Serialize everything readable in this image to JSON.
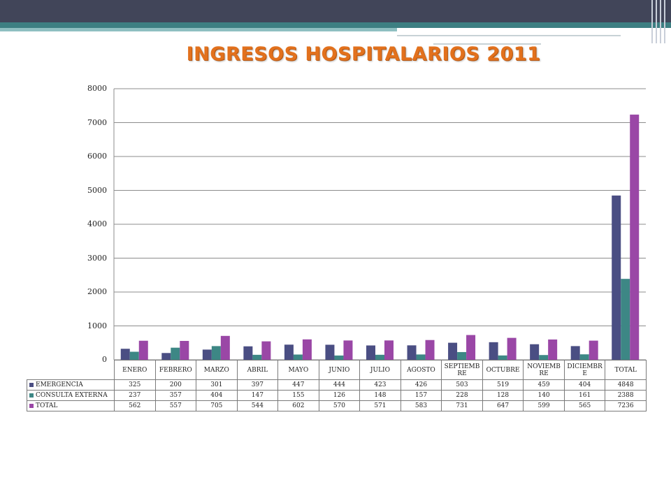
{
  "slide": {
    "title": "INGRESOS HOSPITALARIOS 2011"
  },
  "colors": {
    "emergencia": "#4a4e83",
    "consulta_externa": "#3d8785",
    "total": "#9a47a6",
    "title": "#e2711d"
  },
  "chart_data": {
    "type": "bar",
    "title": "",
    "xlabel": "",
    "ylabel": "",
    "ylim": [
      0,
      8000
    ],
    "yticks": [
      "0",
      "1000",
      "2000",
      "3000",
      "4000",
      "5000",
      "6000",
      "7000",
      "8000"
    ],
    "grid": true,
    "legend": "data-table",
    "categories": [
      "ENERO",
      "FEBRERO",
      "MARZO",
      "ABRIL",
      "MAYO",
      "JUNIO",
      "JULIO",
      "AGOSTO",
      "SEPTIEMBRE",
      "OCTUBRE",
      "NOVIEMBRE",
      "DICIEMBRE",
      "TOTAL"
    ],
    "category_labels": [
      "ENERO",
      "FEBRERO",
      "MARZO",
      "ABRIL",
      "MAYO",
      "JUNIO",
      "JULIO",
      "AGOSTO",
      "SEPTIEMB RE",
      "OCTUBRE",
      "NOVIEMB RE",
      "DICIEMBR E",
      "TOTAL"
    ],
    "series": [
      {
        "name": "EMERGENCIA",
        "values": [
          325,
          200,
          301,
          397,
          447,
          444,
          423,
          426,
          503,
          519,
          459,
          404,
          4848
        ]
      },
      {
        "name": "CONSULTA EXTERNA",
        "values": [
          237,
          357,
          404,
          147,
          155,
          126,
          148,
          157,
          228,
          128,
          140,
          161,
          2388
        ]
      },
      {
        "name": "TOTAL",
        "values": [
          562,
          557,
          705,
          544,
          602,
          570,
          571,
          583,
          731,
          647,
          599,
          565,
          7236
        ]
      }
    ]
  }
}
